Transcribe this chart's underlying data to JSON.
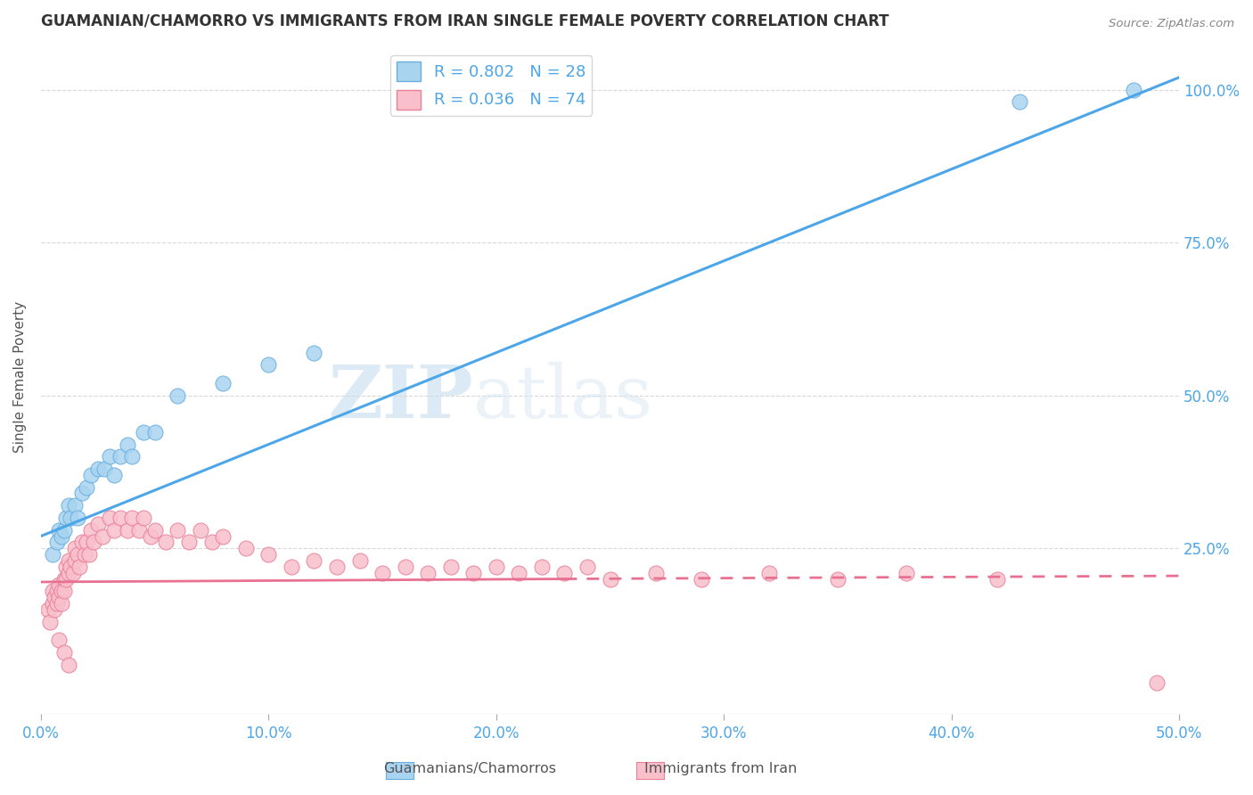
{
  "title": "GUAMANIAN/CHAMORRO VS IMMIGRANTS FROM IRAN SINGLE FEMALE POVERTY CORRELATION CHART",
  "source": "Source: ZipAtlas.com",
  "ylabel": "Single Female Poverty",
  "xlim": [
    0.0,
    0.5
  ],
  "ylim": [
    -0.02,
    1.08
  ],
  "xticks": [
    0.0,
    0.1,
    0.2,
    0.3,
    0.4,
    0.5
  ],
  "yticks": [
    0.25,
    0.5,
    0.75,
    1.0
  ],
  "ytick_labels_right": [
    "25.0%",
    "50.0%",
    "75.0%",
    "100.0%"
  ],
  "xtick_labels": [
    "0.0%",
    "10.0%",
    "20.0%",
    "30.0%",
    "40.0%",
    "50.0%"
  ],
  "blue_R": "0.802",
  "blue_N": "28",
  "pink_R": "0.036",
  "pink_N": "74",
  "blue_color": "#a8d4f0",
  "blue_edge": "#6aaede",
  "pink_color": "#f9c0cc",
  "pink_edge": "#e88098",
  "blue_line_color": "#4da6e8",
  "pink_line_color": "#e87090",
  "blue_line_x0": 0.0,
  "blue_line_y0": 0.27,
  "blue_line_x1": 0.5,
  "blue_line_y1": 1.02,
  "pink_line_x0": 0.0,
  "pink_line_y0": 0.195,
  "pink_line_x1_solid": 0.23,
  "pink_line_y1_solid": 0.2,
  "pink_line_x1_dash": 0.5,
  "pink_line_y1_dash": 0.205,
  "blue_x": [
    0.005,
    0.007,
    0.008,
    0.009,
    0.01,
    0.011,
    0.012,
    0.013,
    0.015,
    0.016,
    0.018,
    0.02,
    0.022,
    0.025,
    0.028,
    0.03,
    0.032,
    0.035,
    0.038,
    0.04,
    0.045,
    0.05,
    0.06,
    0.08,
    0.1,
    0.12,
    0.43,
    0.48
  ],
  "blue_y": [
    0.24,
    0.26,
    0.28,
    0.27,
    0.28,
    0.3,
    0.32,
    0.3,
    0.32,
    0.3,
    0.34,
    0.35,
    0.37,
    0.38,
    0.38,
    0.4,
    0.37,
    0.4,
    0.42,
    0.4,
    0.44,
    0.44,
    0.5,
    0.52,
    0.55,
    0.57,
    0.98,
    1.0
  ],
  "pink_x": [
    0.003,
    0.004,
    0.005,
    0.005,
    0.006,
    0.006,
    0.007,
    0.007,
    0.008,
    0.008,
    0.009,
    0.009,
    0.01,
    0.01,
    0.011,
    0.011,
    0.012,
    0.012,
    0.013,
    0.014,
    0.015,
    0.015,
    0.016,
    0.017,
    0.018,
    0.019,
    0.02,
    0.021,
    0.022,
    0.023,
    0.025,
    0.027,
    0.03,
    0.032,
    0.035,
    0.038,
    0.04,
    0.043,
    0.045,
    0.048,
    0.05,
    0.055,
    0.06,
    0.065,
    0.07,
    0.075,
    0.08,
    0.09,
    0.1,
    0.11,
    0.12,
    0.13,
    0.14,
    0.15,
    0.16,
    0.17,
    0.18,
    0.19,
    0.2,
    0.21,
    0.22,
    0.23,
    0.24,
    0.25,
    0.27,
    0.29,
    0.32,
    0.35,
    0.38,
    0.42,
    0.008,
    0.01,
    0.012,
    0.49
  ],
  "pink_y": [
    0.15,
    0.13,
    0.18,
    0.16,
    0.17,
    0.15,
    0.18,
    0.16,
    0.19,
    0.17,
    0.18,
    0.16,
    0.2,
    0.18,
    0.22,
    0.2,
    0.23,
    0.21,
    0.22,
    0.21,
    0.23,
    0.25,
    0.24,
    0.22,
    0.26,
    0.24,
    0.26,
    0.24,
    0.28,
    0.26,
    0.29,
    0.27,
    0.3,
    0.28,
    0.3,
    0.28,
    0.3,
    0.28,
    0.3,
    0.27,
    0.28,
    0.26,
    0.28,
    0.26,
    0.28,
    0.26,
    0.27,
    0.25,
    0.24,
    0.22,
    0.23,
    0.22,
    0.23,
    0.21,
    0.22,
    0.21,
    0.22,
    0.21,
    0.22,
    0.21,
    0.22,
    0.21,
    0.22,
    0.2,
    0.21,
    0.2,
    0.21,
    0.2,
    0.21,
    0.2,
    0.1,
    0.08,
    0.06,
    0.03
  ],
  "watermark_zip": "ZIP",
  "watermark_atlas": "atlas",
  "background_color": "#ffffff",
  "grid_color": "#d8d8d8"
}
